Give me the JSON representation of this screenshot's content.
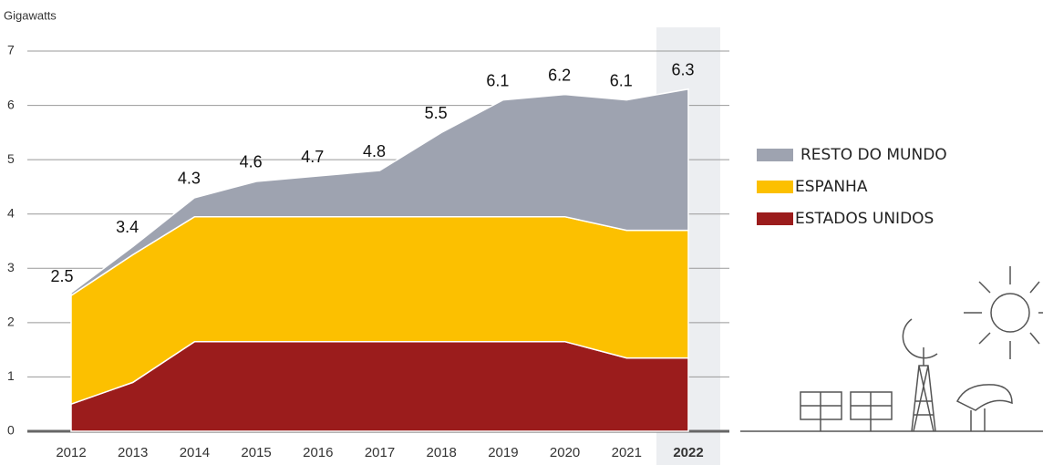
{
  "chart_data": {
    "type": "stacked_area",
    "y_label": "Gigawatts",
    "categories": [
      "2012",
      "2013",
      "2014",
      "2015",
      "2016",
      "2017",
      "2018",
      "2019",
      "2020",
      "2021",
      "2022"
    ],
    "highlight_category": "2022",
    "series": [
      {
        "name": "ESTADOS UNIDOS",
        "color": "#9b1c1c",
        "values": [
          0.5,
          0.9,
          1.65,
          1.65,
          1.65,
          1.65,
          1.65,
          1.65,
          1.65,
          1.35,
          1.35
        ]
      },
      {
        "name": "ESPANHA",
        "color": "#fcc000",
        "values": [
          2.0,
          2.35,
          2.3,
          2.3,
          2.3,
          2.3,
          2.3,
          2.3,
          2.3,
          2.35,
          2.35
        ]
      },
      {
        "name": "RESTO DO MUNDO",
        "color": "#9ea3b0",
        "values": [
          0.05,
          0.15,
          0.35,
          0.65,
          0.75,
          0.85,
          1.55,
          2.15,
          2.25,
          2.4,
          2.6
        ]
      }
    ],
    "totals": [
      2.5,
      3.4,
      4.3,
      4.6,
      4.7,
      4.8,
      5.5,
      6.1,
      6.2,
      6.1,
      6.3
    ],
    "ylim": [
      0,
      7
    ],
    "yticks": [
      0,
      1,
      2,
      3,
      4,
      5,
      6,
      7
    ],
    "grid": true
  }
}
